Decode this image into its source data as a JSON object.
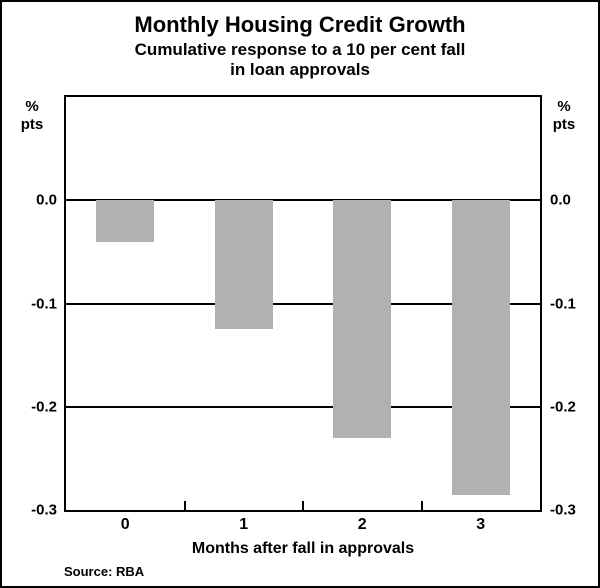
{
  "chart": {
    "title": "Monthly Housing Credit Growth",
    "subtitle_line1": "Cumulative response to a 10 per cent fall",
    "subtitle_line2": "in loan approvals",
    "unit_line1": "%",
    "unit_line2": "pts",
    "xlabel": "Months after fall in approvals",
    "source": "Source: RBA",
    "bar_color": "#b1b1b1",
    "line_color": "#000000"
  },
  "chart_data": {
    "type": "bar",
    "title": "Monthly Housing Credit Growth",
    "subtitle": "Cumulative response to a 10 per cent fall in loan approvals",
    "categories": [
      "0",
      "1",
      "2",
      "3"
    ],
    "values": [
      -0.04,
      -0.125,
      -0.23,
      -0.285
    ],
    "xlabel": "Months after fall in approvals",
    "ylabel": "% pts",
    "ylim": [
      -0.3,
      0.1
    ],
    "yticks": [
      0.0,
      -0.1,
      -0.2,
      -0.3
    ],
    "ytick_labels": [
      "0.0",
      "-0.1",
      "-0.2",
      "-0.3"
    ],
    "gridlines": [
      0.0,
      -0.1,
      -0.2
    ],
    "grid": "horizontal",
    "legend": "none",
    "source": "RBA"
  }
}
